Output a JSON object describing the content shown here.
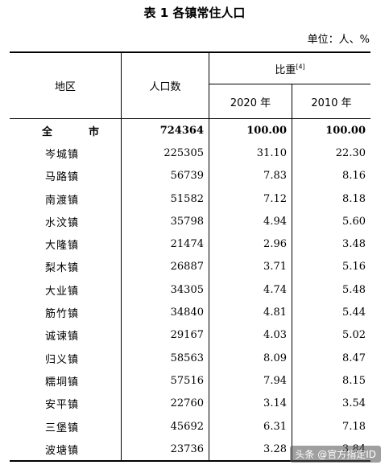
{
  "title": "表 1 各镇常住人口",
  "unit": "单位：人、%",
  "headers": {
    "region": "地区",
    "population": "人口数",
    "ratio": "比重",
    "ratio_note": "[4]",
    "year_2020": "2020 年",
    "year_2010": "2010 年"
  },
  "rows": [
    {
      "name": "全　市",
      "population": "724364",
      "r2020": "100.00",
      "r2010": "100.00"
    },
    {
      "name": "岑城镇",
      "population": "225305",
      "r2020": "31.10",
      "r2010": "22.30"
    },
    {
      "name": "马路镇",
      "population": "56739",
      "r2020": "7.83",
      "r2010": "8.16"
    },
    {
      "name": "南渡镇",
      "population": "51582",
      "r2020": "7.12",
      "r2010": "8.18"
    },
    {
      "name": "水汶镇",
      "population": "35798",
      "r2020": "4.94",
      "r2010": "5.60"
    },
    {
      "name": "大隆镇",
      "population": "21474",
      "r2020": "2.96",
      "r2010": "3.48"
    },
    {
      "name": "梨木镇",
      "population": "26887",
      "r2020": "3.71",
      "r2010": "5.16"
    },
    {
      "name": "大业镇",
      "population": "34305",
      "r2020": "4.74",
      "r2010": "5.48"
    },
    {
      "name": "筋竹镇",
      "population": "34840",
      "r2020": "4.81",
      "r2010": "5.44"
    },
    {
      "name": "诚谏镇",
      "population": "29167",
      "r2020": "4.03",
      "r2010": "5.02"
    },
    {
      "name": "归义镇",
      "population": "58563",
      "r2020": "8.09",
      "r2010": "8.47"
    },
    {
      "name": "糯垌镇",
      "population": "57516",
      "r2020": "7.94",
      "r2010": "8.15"
    },
    {
      "name": "安平镇",
      "population": "22760",
      "r2020": "3.14",
      "r2010": "3.54"
    },
    {
      "name": "三堡镇",
      "population": "45692",
      "r2020": "6.31",
      "r2010": "7.18"
    },
    {
      "name": "波塘镇",
      "population": "23736",
      "r2020": "3.28",
      "r2010": "3.84"
    }
  ],
  "watermark": "头条 @官方指定ID"
}
